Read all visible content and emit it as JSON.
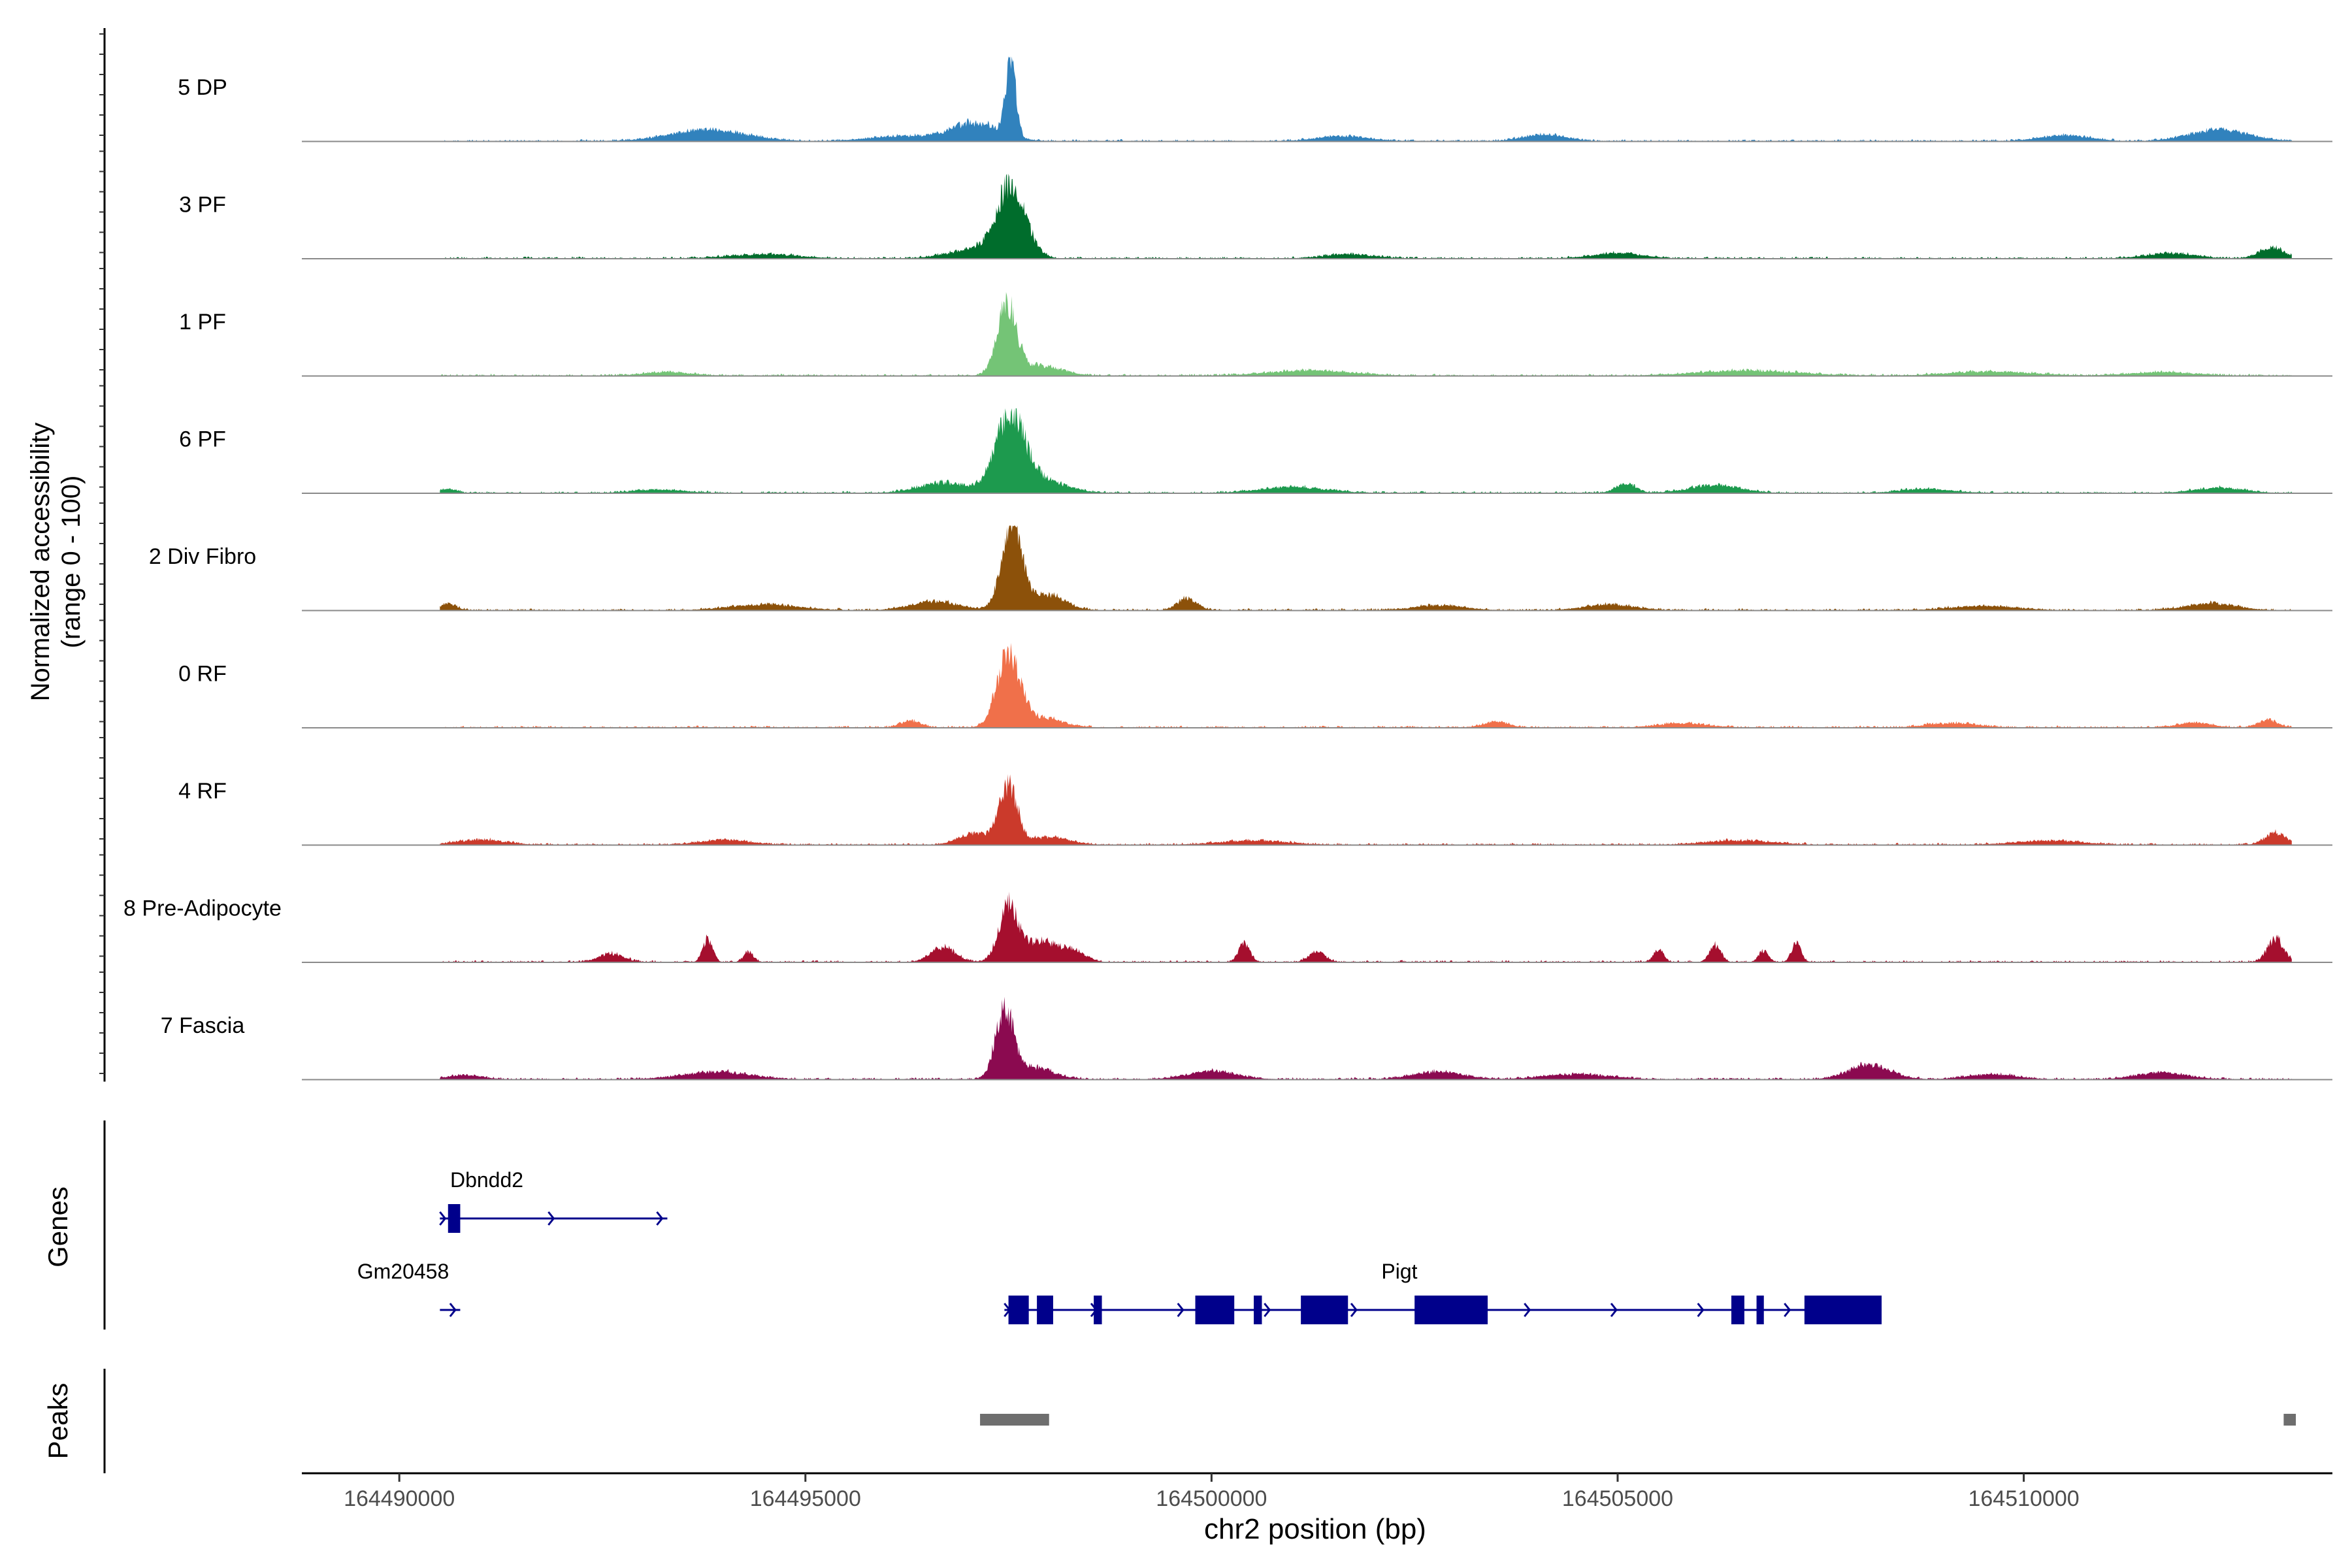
{
  "chart_data": {
    "type": "area",
    "title": "",
    "ylabel": "Normalized accessibility\n(range 0 - 100)",
    "xlabel": "chr2 position (bp)",
    "xlim": [
      164488800,
      164513800
    ],
    "ylim": [
      0,
      100
    ],
    "x_ticks": [
      164490000,
      164495000,
      164500000,
      164505000,
      164510000
    ],
    "x_tick_labels": [
      "164490000",
      "164495000",
      "164500000",
      "164505000",
      "164510000"
    ],
    "data_range": [
      164490500,
      164513300
    ],
    "tracks": [
      {
        "name": "5 DP",
        "color": "#3182bd",
        "seed": 5,
        "peaks": [
          [
            164497530,
            100,
            60
          ],
          [
            164497100,
            22,
            300
          ],
          [
            164493800,
            14,
            450
          ],
          [
            164512400,
            14,
            350
          ],
          [
            164504100,
            8,
            250
          ],
          [
            164510500,
            7,
            300
          ],
          [
            164496200,
            6,
            400
          ],
          [
            164501600,
            6,
            300
          ]
        ]
      },
      {
        "name": "3 PF",
        "color": "#006d2c",
        "seed": 3,
        "peaks": [
          [
            164497530,
            85,
            180
          ],
          [
            164497050,
            10,
            300
          ],
          [
            164513050,
            14,
            150
          ],
          [
            164511800,
            6,
            300
          ],
          [
            164505000,
            6,
            300
          ],
          [
            164494500,
            5,
            400
          ],
          [
            164501700,
            5,
            300
          ]
        ]
      },
      {
        "name": "1 PF",
        "color": "#74c476",
        "seed": 1,
        "peaks": [
          [
            164497480,
            85,
            120
          ],
          [
            164497900,
            12,
            250
          ],
          [
            164501200,
            6,
            500
          ],
          [
            164506600,
            6,
            600
          ],
          [
            164509600,
            5,
            500
          ],
          [
            164493300,
            4,
            300
          ],
          [
            164511700,
            4,
            400
          ]
        ]
      },
      {
        "name": "6 PF",
        "color": "#1d9a4e",
        "seed": 6,
        "peaks": [
          [
            164497520,
            90,
            180
          ],
          [
            164497900,
            15,
            300
          ],
          [
            164496700,
            12,
            300
          ],
          [
            164505100,
            12,
            120
          ],
          [
            164506200,
            10,
            300
          ],
          [
            164501000,
            7,
            400
          ],
          [
            164512400,
            6,
            300
          ],
          [
            164490600,
            5,
            100
          ],
          [
            164508800,
            5,
            300
          ],
          [
            164493200,
            4,
            300
          ]
        ]
      },
      {
        "name": "2 Div Fibro",
        "color": "#8c510a",
        "seed": 2,
        "peaks": [
          [
            164497550,
            100,
            130
          ],
          [
            164498000,
            18,
            200
          ],
          [
            164496600,
            10,
            300
          ],
          [
            164499700,
            14,
            120
          ],
          [
            164512300,
            8,
            300
          ],
          [
            164504900,
            7,
            300
          ],
          [
            164490600,
            8,
            100
          ],
          [
            164494500,
            7,
            400
          ],
          [
            164502800,
            6,
            300
          ],
          [
            164509500,
            5,
            400
          ]
        ]
      },
      {
        "name": "0 RF",
        "color": "#f0704a",
        "seed": 0,
        "peaks": [
          [
            164497500,
            85,
            140
          ],
          [
            164497900,
            12,
            250
          ],
          [
            164496300,
            8,
            120
          ],
          [
            164513000,
            9,
            120
          ],
          [
            164503500,
            7,
            150
          ],
          [
            164512100,
            6,
            200
          ],
          [
            164505800,
            5,
            300
          ],
          [
            164509100,
            5,
            300
          ]
        ]
      },
      {
        "name": "4 RF",
        "color": "#cb3a2b",
        "seed": 4,
        "peaks": [
          [
            164497500,
            70,
            110
          ],
          [
            164497100,
            14,
            200
          ],
          [
            164498000,
            9,
            250
          ],
          [
            164513100,
            14,
            130
          ],
          [
            164491000,
            6,
            300
          ],
          [
            164494000,
            6,
            300
          ],
          [
            164500500,
            5,
            400
          ],
          [
            164506500,
            5,
            400
          ],
          [
            164510300,
            5,
            400
          ]
        ]
      },
      {
        "name": "8 Pre-Adipocyte",
        "color": "#a50f2e",
        "seed": 8,
        "peaks": [
          [
            164497500,
            65,
            120
          ],
          [
            164497900,
            25,
            200
          ],
          [
            164498300,
            12,
            150
          ],
          [
            164496700,
            18,
            150
          ],
          [
            164493800,
            28,
            60
          ],
          [
            164500400,
            22,
            70
          ],
          [
            164505500,
            15,
            60
          ],
          [
            164506200,
            20,
            70
          ],
          [
            164506800,
            14,
            60
          ],
          [
            164507200,
            22,
            60
          ],
          [
            164513100,
            28,
            100
          ],
          [
            164492600,
            10,
            150
          ],
          [
            164494300,
            12,
            60
          ],
          [
            164501300,
            12,
            100
          ]
        ]
      },
      {
        "name": "7 Fascia",
        "color": "#8b0a50",
        "seed": 7,
        "peaks": [
          [
            164497450,
            80,
            110
          ],
          [
            164497800,
            14,
            250
          ],
          [
            164508100,
            18,
            250
          ],
          [
            164500000,
            10,
            300
          ],
          [
            164502800,
            9,
            300
          ],
          [
            164493900,
            9,
            400
          ],
          [
            164511700,
            8,
            300
          ],
          [
            164504500,
            6,
            400
          ],
          [
            164490800,
            5,
            200
          ],
          [
            164509600,
            6,
            300
          ]
        ]
      }
    ],
    "genes": [
      {
        "name": "Dbndd2",
        "strand": "+",
        "start": 164490500,
        "end": 164493300,
        "row": 0,
        "exons": [
          [
            164490600,
            164490750
          ]
        ]
      },
      {
        "name": "Gm20458",
        "strand": "+",
        "start": 164490500,
        "end": 164490750,
        "row": 1,
        "exons": []
      },
      {
        "name": "Pigt",
        "strand": "+",
        "start": 164497450,
        "end": 164508250,
        "row": 1,
        "exons": [
          [
            164497500,
            164497750
          ],
          [
            164497850,
            164498050
          ],
          [
            164498550,
            164498650
          ],
          [
            164499800,
            164500280
          ],
          [
            164500520,
            164500620
          ],
          [
            164501100,
            164501680
          ],
          [
            164502500,
            164503400
          ],
          [
            164506400,
            164506560
          ],
          [
            164506710,
            164506800
          ],
          [
            164507300,
            164508250
          ]
        ]
      }
    ],
    "peaks_track": [
      [
        164497150,
        164498000
      ],
      [
        164513200,
        164513350
      ]
    ],
    "track_labels": {
      "genes": "Genes",
      "peaks": "Peaks"
    }
  }
}
